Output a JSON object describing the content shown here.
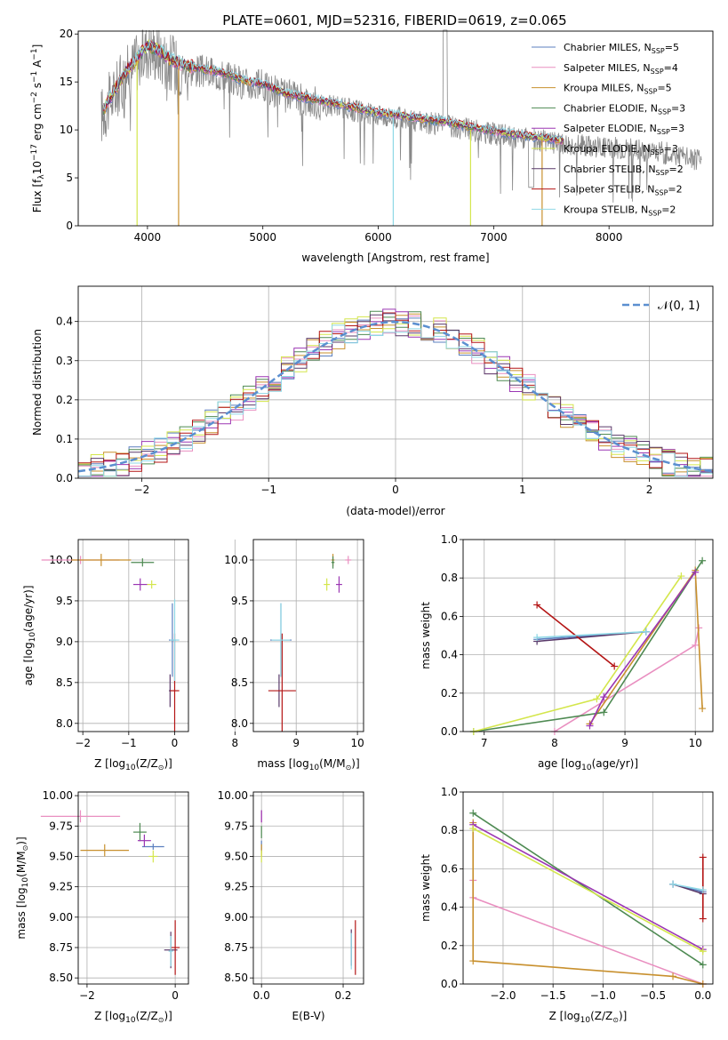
{
  "page": {
    "title": "PLATE=0601, MJD=52316, FIBERID=0619, z=0.065"
  },
  "models": [
    {
      "name": "Chabrier MILES",
      "nssp": "5",
      "color": "#5b7fbf"
    },
    {
      "name": "Salpeter MILES",
      "nssp": "4",
      "color": "#e98fc0"
    },
    {
      "name": "Kroupa MILES",
      "nssp": "5",
      "color": "#c8902e"
    },
    {
      "name": "Chabrier ELODIE",
      "nssp": "3",
      "color": "#4e8a52"
    },
    {
      "name": "Salpeter ELODIE",
      "nssp": "3",
      "color": "#9b36b3"
    },
    {
      "name": "Kroupa ELODIE",
      "nssp": "3",
      "color": "#d4e64c"
    },
    {
      "name": "Chabrier STELIB",
      "nssp": "2",
      "color": "#5a3a6a"
    },
    {
      "name": "Salpeter STELIB",
      "nssp": "2",
      "color": "#b41515"
    },
    {
      "name": "Kroupa STELIB",
      "nssp": "2",
      "color": "#8fd8e6"
    }
  ],
  "legend_nssp_prefix": "N",
  "legend_nssp_sub": "SSP",
  "chart_data": [
    {
      "id": "spectrum",
      "type": "line",
      "title": "PLATE=0601, MJD=52316, FIBERID=0619, z=0.065",
      "xlabel": "wavelength [Angstrom, rest frame]",
      "ylabel_parts": [
        "Flux [f",
        "λ",
        "10",
        "−17",
        " erg cm",
        "−2",
        " s",
        "−1",
        " A",
        "−1",
        "]"
      ],
      "xlim": [
        3400,
        8900
      ],
      "ylim": [
        0,
        20.3
      ],
      "xticks": [
        "4000",
        "5000",
        "6000",
        "7000",
        "8000"
      ],
      "yticks": [
        "0",
        "5",
        "10",
        "15",
        "20"
      ],
      "data_color": "#888888",
      "series": [
        {
          "x": [
            3600,
            3700,
            3800,
            3900,
            4000,
            4100,
            4200,
            4300,
            4400,
            4500,
            4600,
            4700,
            4800,
            4900,
            5000,
            5200,
            5400,
            5600,
            5800,
            6000,
            6200,
            6400,
            6600,
            6800,
            7000,
            7200,
            7400,
            7600,
            7800,
            8000,
            8200,
            8400,
            8600,
            8800
          ],
          "y": [
            11.5,
            13.5,
            15.5,
            17.0,
            18.5,
            18.0,
            17.0,
            16.5,
            16.2,
            16.0,
            15.8,
            15.5,
            15.0,
            14.7,
            14.5,
            13.5,
            13.0,
            12.5,
            12.0,
            11.5,
            11.2,
            10.8,
            10.5,
            10.0,
            9.6,
            9.2,
            8.9,
            8.6,
            8.4,
            8.2,
            8.0,
            7.7,
            7.4,
            6.8
          ]
        }
      ],
      "dips": [
        {
          "x": 3910,
          "ymin": 0,
          "model": 5
        },
        {
          "x": 4270,
          "ymin": 0,
          "model": 2
        },
        {
          "x": 6130,
          "ymin": 0,
          "model": 8
        },
        {
          "x": 6800,
          "ymin": 0,
          "model": 5
        },
        {
          "x": 7420,
          "ymin": 0,
          "model": 2
        }
      ]
    },
    {
      "id": "residuals",
      "type": "line",
      "xlabel": "(data-model)/error",
      "ylabel": "Normed distribution",
      "xlim": [
        -2.5,
        2.5
      ],
      "ylim": [
        0,
        0.49
      ],
      "xticks": [
        "−2",
        "−1",
        "0",
        "1",
        "2"
      ],
      "yticks": [
        "0.0",
        "0.1",
        "0.2",
        "0.3",
        "0.4"
      ],
      "reference_label": "𝒩(0, 1)",
      "reference_color": "#5b8fd0",
      "bin_width": 0.1
    },
    {
      "id": "age-vs-Z",
      "type": "scatter",
      "xlabel": "Z [log",
      "xlabel_sub": "10",
      "xlabel_rest": "(Z/Z",
      "xlabel_end": ")]",
      "ylabel": "age  [log",
      "ylabel_sub": "10",
      "ylabel_rest": "(age/yr)]",
      "xlim": [
        -2.1,
        0.3
      ],
      "ylim": [
        7.9,
        10.25
      ],
      "xticks": [
        "−2",
        "−1",
        "0"
      ],
      "yticks": [
        "8.0",
        "8.5",
        "9.0",
        "9.5",
        "10.0"
      ],
      "points": [
        {
          "m": 0,
          "x": -0.05,
          "y": 9.02,
          "ex": 0.15,
          "ey": 0.9
        },
        {
          "m": 1,
          "x": -2.05,
          "y": 10.0,
          "ex": 1.7,
          "ey": 0.1
        },
        {
          "m": 2,
          "x": -1.6,
          "y": 10.0,
          "ex": 1.3,
          "ey": 0.15
        },
        {
          "m": 3,
          "x": -0.7,
          "y": 9.97,
          "ex": 0.5,
          "ey": 0.1
        },
        {
          "m": 4,
          "x": -0.75,
          "y": 9.7,
          "ex": 0.3,
          "ey": 0.15
        },
        {
          "m": 5,
          "x": -0.5,
          "y": 9.7,
          "ex": 0.2,
          "ey": 0.1
        },
        {
          "m": 6,
          "x": -0.1,
          "y": 8.4,
          "ex": 0.05,
          "ey": 0.4
        },
        {
          "m": 7,
          "x": 0.0,
          "y": 8.4,
          "ex": 0.2,
          "ey": 1.4
        },
        {
          "m": 8,
          "x": 0.0,
          "y": 9.02,
          "ex": 0.2,
          "ey": 1.0
        }
      ]
    },
    {
      "id": "age-vs-mass",
      "type": "scatter",
      "xlabel": "mass [log",
      "xlabel_sub": "10",
      "xlabel_rest": "(M/M",
      "xlabel_end": ")]",
      "xlim": [
        8.3,
        10.1
      ],
      "ylim": [
        7.9,
        10.25
      ],
      "xticks": [
        "8",
        "9",
        "10"
      ],
      "yticks": [
        "8.0",
        "8.5",
        "9.0",
        "9.5",
        "10.0"
      ],
      "points": [
        {
          "m": 0,
          "x": 8.75,
          "y": 9.02,
          "ex": 0.35,
          "ey": 0.9
        },
        {
          "m": 1,
          "x": 9.85,
          "y": 10.0,
          "ex": 0.1,
          "ey": 0.1
        },
        {
          "m": 2,
          "x": 9.6,
          "y": 10.0,
          "ex": 0.05,
          "ey": 0.15
        },
        {
          "m": 3,
          "x": 9.6,
          "y": 9.97,
          "ex": 0.05,
          "ey": 0.15
        },
        {
          "m": 4,
          "x": 9.7,
          "y": 9.7,
          "ex": 0.1,
          "ey": 0.2
        },
        {
          "m": 5,
          "x": 9.5,
          "y": 9.7,
          "ex": 0.1,
          "ey": 0.15
        },
        {
          "m": 6,
          "x": 8.72,
          "y": 8.4,
          "ex": 0.02,
          "ey": 0.4
        },
        {
          "m": 7,
          "x": 8.77,
          "y": 8.4,
          "ex": 0.45,
          "ey": 1.4
        },
        {
          "m": 8,
          "x": 8.75,
          "y": 9.02,
          "ex": 0.3,
          "ey": 0.9
        }
      ]
    },
    {
      "id": "mass-weight-vs-age",
      "type": "line",
      "xlabel": "age  [log",
      "xlabel_sub": "10",
      "xlabel_rest": "(age/yr)]",
      "ylabel": "mass weight",
      "xlim": [
        6.7,
        10.25
      ],
      "ylim": [
        0,
        1.0
      ],
      "xticks": [
        "7",
        "8",
        "9",
        "10"
      ],
      "yticks": [
        "0.0",
        "0.2",
        "0.4",
        "0.6",
        "0.8",
        "1.0"
      ],
      "series": [
        {
          "m": 0,
          "x": [
            7.75,
            9.3
          ],
          "y": [
            0.48,
            0.52
          ]
        },
        {
          "m": 1,
          "x": [
            8.0,
            10.0,
            10.05
          ],
          "y": [
            0.0,
            0.45,
            0.54
          ]
        },
        {
          "m": 2,
          "x": [
            8.5,
            10.0,
            10.1
          ],
          "y": [
            0.04,
            0.84,
            0.12
          ]
        },
        {
          "m": 3,
          "x": [
            6.85,
            8.7,
            10.1
          ],
          "y": [
            0.0,
            0.1,
            0.89
          ]
        },
        {
          "m": 4,
          "x": [
            8.5,
            8.7,
            10.0
          ],
          "y": [
            0.03,
            0.18,
            0.83
          ]
        },
        {
          "m": 5,
          "x": [
            6.85,
            8.6,
            9.8
          ],
          "y": [
            0.0,
            0.17,
            0.81
          ]
        },
        {
          "m": 6,
          "x": [
            7.75,
            9.3
          ],
          "y": [
            0.47,
            0.52
          ]
        },
        {
          "m": 7,
          "x": [
            7.75,
            8.85
          ],
          "y": [
            0.66,
            0.34
          ]
        },
        {
          "m": 8,
          "x": [
            7.75,
            9.3
          ],
          "y": [
            0.49,
            0.52
          ]
        }
      ]
    },
    {
      "id": "mass-vs-Z",
      "type": "scatter",
      "xlabel": "Z [log",
      "xlabel_sub": "10",
      "xlabel_rest": "(Z/Z",
      "xlabel_end": ")]",
      "ylabel": "mass [log",
      "ylabel_sub": "10",
      "ylabel_rest": "(M/M",
      "ylabel_end": ")]",
      "xlim": [
        -2.2,
        0.3
      ],
      "ylim": [
        8.45,
        10.03
      ],
      "xticks": [
        "−2",
        "0"
      ],
      "yticks": [
        "8.50",
        "8.75",
        "9.00",
        "9.25",
        "9.50",
        "9.75",
        "10.00"
      ],
      "points": [
        {
          "m": 0,
          "x": -0.5,
          "y": 9.58,
          "ex": 0.5,
          "ey": 0.05
        },
        {
          "m": 1,
          "x": -2.15,
          "y": 9.83,
          "ex": 1.8,
          "ey": 0.1
        },
        {
          "m": 2,
          "x": -1.6,
          "y": 9.55,
          "ex": 1.1,
          "ey": 0.1
        },
        {
          "m": 3,
          "x": -0.8,
          "y": 9.7,
          "ex": 0.3,
          "ey": 0.15
        },
        {
          "m": 4,
          "x": -0.7,
          "y": 9.63,
          "ex": 0.3,
          "ey": 0.1
        },
        {
          "m": 5,
          "x": -0.5,
          "y": 9.5,
          "ex": 0.2,
          "ey": 0.1
        },
        {
          "m": 6,
          "x": -0.1,
          "y": 8.73,
          "ex": 0.3,
          "ey": 0.3
        },
        {
          "m": 7,
          "x": 0.0,
          "y": 8.75,
          "ex": 0.2,
          "ey": 0.45
        },
        {
          "m": 8,
          "x": -0.1,
          "y": 8.72,
          "ex": 0.1,
          "ey": 0.25
        }
      ]
    },
    {
      "id": "mass-vs-ebv",
      "type": "scatter",
      "xlabel": "E(B-V)",
      "xlim": [
        -0.02,
        0.25
      ],
      "ylim": [
        8.45,
        10.03
      ],
      "xticks": [
        "0.0",
        "0.2"
      ],
      "yticks": [
        "8.50",
        "8.75",
        "9.00",
        "9.25",
        "9.50",
        "9.75",
        "10.00"
      ],
      "points": [
        {
          "m": 0,
          "x": 0.0,
          "y": 9.58,
          "ex": 0,
          "ey": 0.1
        },
        {
          "m": 1,
          "x": 0.0,
          "y": 9.83,
          "ex": 0,
          "ey": 0.1
        },
        {
          "m": 2,
          "x": 0.0,
          "y": 9.55,
          "ex": 0,
          "ey": 0.1
        },
        {
          "m": 3,
          "x": 0.0,
          "y": 9.7,
          "ex": 0,
          "ey": 0.1
        },
        {
          "m": 4,
          "x": 0.0,
          "y": 9.83,
          "ex": 0,
          "ey": 0.1
        },
        {
          "m": 5,
          "x": 0.0,
          "y": 9.5,
          "ex": 0,
          "ey": 0.1
        },
        {
          "m": 6,
          "x": 0.22,
          "y": 8.75,
          "ex": 0,
          "ey": 0.3
        },
        {
          "m": 7,
          "x": 0.23,
          "y": 8.75,
          "ex": 0,
          "ey": 0.45
        },
        {
          "m": 8,
          "x": 0.22,
          "y": 8.72,
          "ex": 0,
          "ey": 0.3
        }
      ]
    },
    {
      "id": "mass-weight-vs-Z",
      "type": "line",
      "xlabel": "Z [log",
      "xlabel_sub": "10",
      "xlabel_rest": "(Z/Z",
      "xlabel_end": ")]",
      "ylabel": "mass weight",
      "xlim": [
        -2.4,
        0.1
      ],
      "ylim": [
        0,
        1.0
      ],
      "xticks": [
        "−2.0",
        "−1.5",
        "−1.0",
        "−0.5",
        "0.0"
      ],
      "yticks": [
        "0.0",
        "0.2",
        "0.4",
        "0.6",
        "0.8",
        "1.0"
      ],
      "series": [
        {
          "m": 0,
          "x": [
            -0.3,
            0.0
          ],
          "y": [
            0.52,
            0.48
          ]
        },
        {
          "m": 1,
          "x": [
            -2.3,
            -2.3,
            0.0
          ],
          "y": [
            0.54,
            0.45,
            0.0
          ]
        },
        {
          "m": 2,
          "x": [
            -2.3,
            -2.3,
            -0.3,
            0.0
          ],
          "y": [
            0.84,
            0.12,
            0.04,
            0.0
          ]
        },
        {
          "m": 3,
          "x": [
            -2.3,
            0.0
          ],
          "y": [
            0.89,
            0.1
          ]
        },
        {
          "m": 4,
          "x": [
            -2.3,
            0.0
          ],
          "y": [
            0.83,
            0.18
          ]
        },
        {
          "m": 5,
          "x": [
            -2.3,
            0.0
          ],
          "y": [
            0.81,
            0.17
          ]
        },
        {
          "m": 6,
          "x": [
            -0.3,
            0.0
          ],
          "y": [
            0.52,
            0.47
          ]
        },
        {
          "m": 7,
          "x": [
            0.0,
            0.0
          ],
          "y": [
            0.66,
            0.34
          ]
        },
        {
          "m": 8,
          "x": [
            -0.3,
            0.0
          ],
          "y": [
            0.52,
            0.49
          ]
        }
      ]
    }
  ]
}
